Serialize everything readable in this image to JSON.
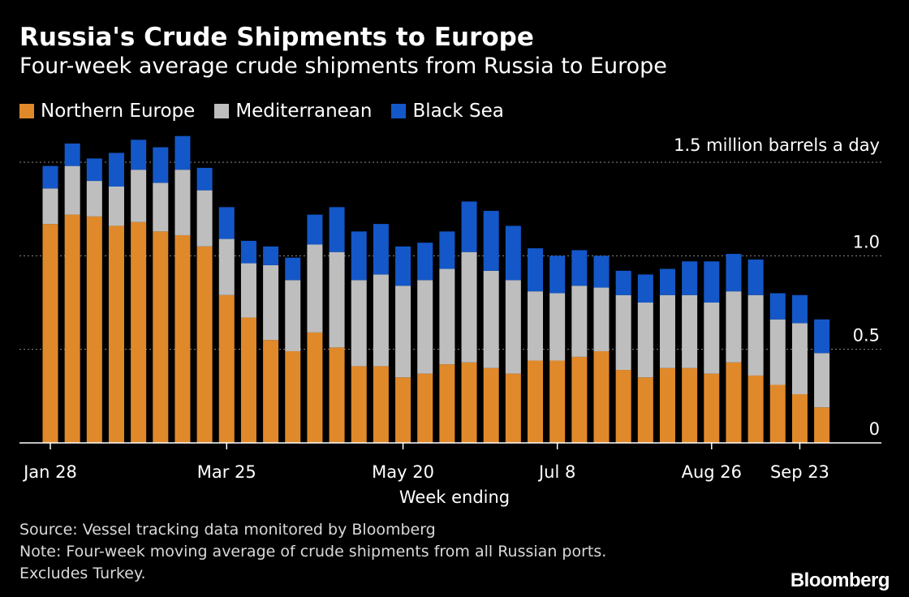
{
  "title": "Russia's Crude Shipments to Europe",
  "subtitle": "Four-week average crude shipments from Russia to Europe",
  "source": "Source: Vessel tracking data monitored by Bloomberg",
  "note_line1": "Note: Four-week moving average of crude shipments from all Russian ports.",
  "note_line2": "Excludes Turkey.",
  "brand": "Bloomberg",
  "colors": {
    "northern_europe": "#e0892a",
    "mediterranean": "#bebebe",
    "black_sea": "#1457c8"
  },
  "chart_data": {
    "type": "bar",
    "stacked": true,
    "xlabel": "Week ending",
    "ylabel": "",
    "unit_label": "1.5 million barrels a day",
    "ylim": [
      0,
      1.5
    ],
    "y_ticks": [
      "0",
      "0.5",
      "1.0",
      "1.5"
    ],
    "x_tick_labels": [
      {
        "index": 0,
        "label": "Jan 28"
      },
      {
        "index": 8,
        "label": "Mar 25"
      },
      {
        "index": 16,
        "label": "May 20"
      },
      {
        "index": 23,
        "label": "Jul 8"
      },
      {
        "index": 30,
        "label": "Aug 26"
      },
      {
        "index": 34,
        "label": "Sep 23"
      }
    ],
    "legend_position": "top-left",
    "series": [
      {
        "name": "Northern Europe",
        "color": "#e0892a",
        "values": [
          1.17,
          1.22,
          1.21,
          1.16,
          1.18,
          1.13,
          1.11,
          1.05,
          0.79,
          0.67,
          0.55,
          0.49,
          0.59,
          0.51,
          0.41,
          0.41,
          0.35,
          0.37,
          0.42,
          0.43,
          0.4,
          0.37,
          0.44,
          0.44,
          0.46,
          0.49,
          0.39,
          0.35,
          0.4,
          0.4,
          0.37,
          0.43,
          0.36,
          0.31,
          0.26,
          0.19
        ]
      },
      {
        "name": "Mediterranean",
        "color": "#bebebe",
        "values": [
          0.19,
          0.26,
          0.19,
          0.21,
          0.28,
          0.26,
          0.35,
          0.3,
          0.3,
          0.29,
          0.4,
          0.38,
          0.47,
          0.51,
          0.46,
          0.49,
          0.49,
          0.5,
          0.51,
          0.59,
          0.52,
          0.5,
          0.37,
          0.36,
          0.38,
          0.34,
          0.4,
          0.4,
          0.39,
          0.39,
          0.38,
          0.38,
          0.43,
          0.35,
          0.38,
          0.29
        ]
      },
      {
        "name": "Black Sea",
        "color": "#1457c8",
        "values": [
          0.12,
          0.12,
          0.12,
          0.18,
          0.16,
          0.19,
          0.18,
          0.12,
          0.17,
          0.12,
          0.1,
          0.12,
          0.16,
          0.24,
          0.26,
          0.27,
          0.21,
          0.2,
          0.2,
          0.27,
          0.32,
          0.29,
          0.23,
          0.2,
          0.19,
          0.17,
          0.13,
          0.15,
          0.14,
          0.18,
          0.22,
          0.2,
          0.19,
          0.14,
          0.15,
          0.18
        ]
      }
    ]
  }
}
